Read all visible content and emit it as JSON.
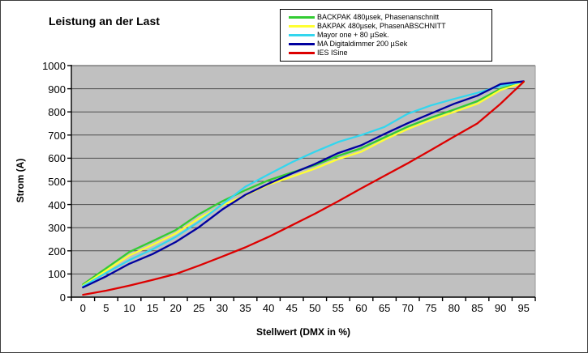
{
  "window": {
    "background": "#ffffff",
    "border_color": "#3c3c3c"
  },
  "chart_data": {
    "type": "line",
    "title": "Leistung an der Last",
    "xlabel": "Stellwert (DMX in %)",
    "ylabel": "Strom (A)",
    "x_categories": [
      0,
      5,
      10,
      15,
      20,
      25,
      30,
      35,
      40,
      45,
      50,
      55,
      60,
      65,
      70,
      75,
      80,
      85,
      90,
      95
    ],
    "ylim": [
      0,
      1000
    ],
    "y_tick_step": 100,
    "grid": true,
    "plot_background": "#c0c0c0",
    "gridline_color": "#4d4d4d",
    "axis_color": "#000000",
    "legend_position": "top-center",
    "legend_border_color": "#000000",
    "series": [
      {
        "name": "BACKPAK 480µsek, Phasenanschnitt",
        "color": "#33cc33",
        "values": [
          55,
          125,
          195,
          242,
          290,
          358,
          414,
          462,
          505,
          538,
          570,
          610,
          643,
          690,
          736,
          775,
          810,
          846,
          900,
          930
        ]
      },
      {
        "name": "BAKPAK 480µsek, PhasenABSCHNITT",
        "color": "#ffff33",
        "values": [
          50,
          115,
          180,
          226,
          275,
          340,
          396,
          440,
          486,
          520,
          555,
          596,
          628,
          680,
          726,
          765,
          800,
          835,
          894,
          927
        ]
      },
      {
        "name": "Mayor one + 80 µSek.",
        "color": "#33d6ee",
        "values": [
          47,
          105,
          160,
          207,
          260,
          326,
          400,
          477,
          530,
          582,
          628,
          670,
          700,
          735,
          792,
          828,
          856,
          882,
          912,
          930
        ]
      },
      {
        "name": "MA Digitaldimmer 200 µSek",
        "color": "#0000a0",
        "values": [
          42,
          90,
          144,
          186,
          238,
          302,
          378,
          442,
          490,
          534,
          575,
          622,
          656,
          705,
          751,
          793,
          835,
          870,
          920,
          932
        ]
      },
      {
        "name": "IES ISine",
        "color": "#dd0000",
        "values": [
          10,
          28,
          50,
          74,
          100,
          136,
          175,
          215,
          260,
          310,
          360,
          414,
          470,
          524,
          578,
          635,
          693,
          750,
          835,
          930
        ]
      }
    ]
  }
}
